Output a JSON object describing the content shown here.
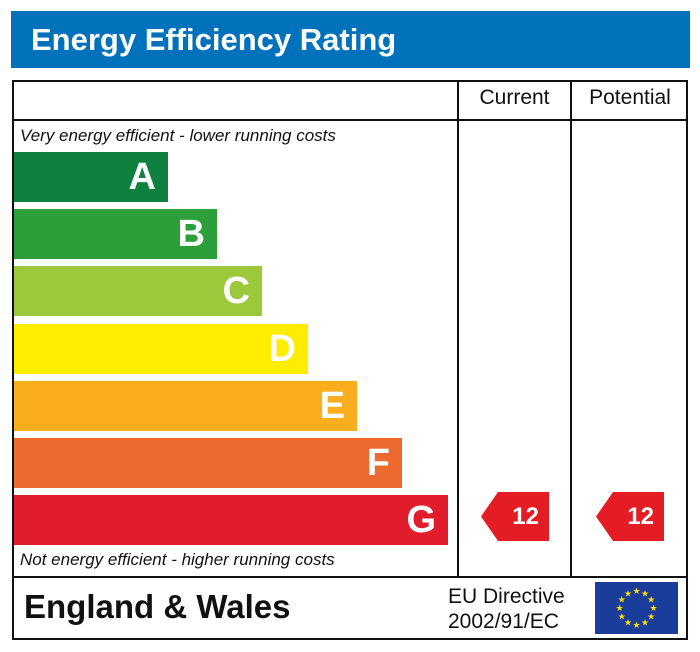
{
  "title": "Energy Efficiency Rating",
  "columns": {
    "current": "Current",
    "potential": "Potential"
  },
  "top_note": "Very energy efficient - lower running costs",
  "bottom_note": "Not energy efficient - higher running costs",
  "footer": {
    "region": "England & Wales",
    "directive_line1": "EU Directive",
    "directive_line2": "2002/91/EC"
  },
  "colors": {
    "header": "#0072bb",
    "arrow": "#e31d23",
    "flag": "#1a3d9c",
    "stars": "#ffdd00"
  },
  "chart_data": {
    "type": "bar",
    "title": "Energy Efficiency Rating",
    "categories": [
      "A",
      "B",
      "C",
      "D",
      "E",
      "F",
      "G"
    ],
    "band_colors": [
      "#0f8040",
      "#2c9f3a",
      "#9cc93b",
      "#ffed00",
      "#fbae1d",
      "#ec6a2f",
      "#e21d2b"
    ],
    "current": {
      "value": 12,
      "band": "G"
    },
    "potential": {
      "value": 12,
      "band": "G"
    }
  }
}
